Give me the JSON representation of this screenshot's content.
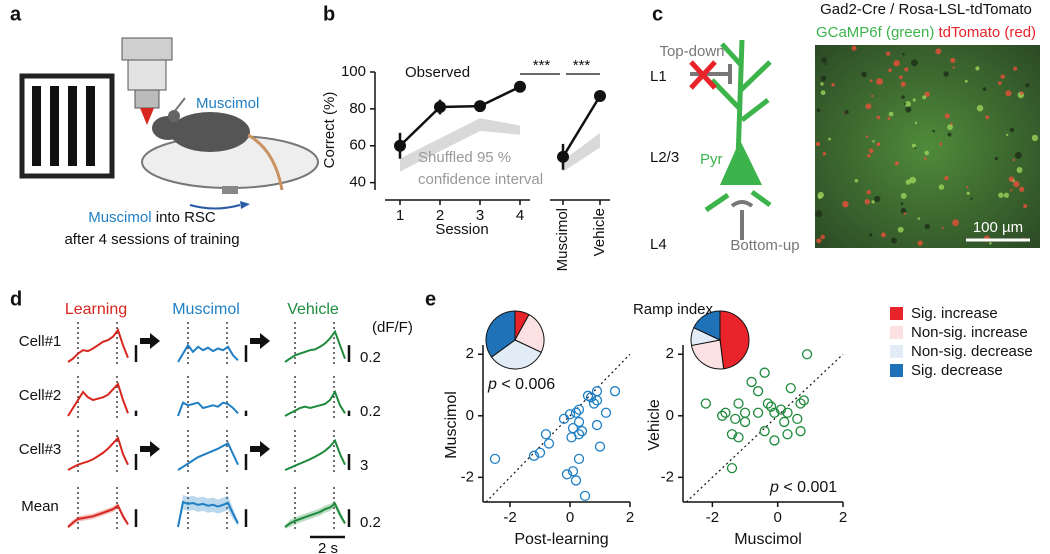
{
  "panel_a": {
    "label": "a",
    "pipette_label": "Muscimol",
    "caption_drug": "Muscimol",
    "caption_rest": " into RSC",
    "caption_line2": "after 4 sessions of training"
  },
  "panel_b": {
    "label": "b",
    "chart_data": {
      "type": "line",
      "y_label": "Correct (%)",
      "x_label": "Session",
      "categories": [
        "1",
        "2",
        "3",
        "4",
        "Muscimol",
        "Vehicle"
      ],
      "series": [
        {
          "name": "Observed",
          "color": "#111111",
          "values": [
            60,
            81,
            81.5,
            92,
            54,
            87
          ],
          "errors": [
            7,
            4,
            3,
            1.5,
            7,
            3
          ]
        }
      ],
      "band": {
        "name_lines": [
          "Shuffled 95 %",
          "confidence interval"
        ],
        "color": "#d9d9d9",
        "lower": [
          46,
          57,
          68,
          66,
          46,
          59
        ],
        "upper": [
          53,
          64,
          75,
          71,
          52,
          67
        ]
      },
      "significance": [
        "***",
        "***"
      ],
      "ylim": [
        36,
        100
      ],
      "yticks": [
        40,
        60,
        80,
        100
      ]
    }
  },
  "panel_c": {
    "label": "c",
    "layers": [
      "L1",
      "L2/3",
      "L4"
    ],
    "top_down": "Top-down",
    "cell": "Pyr",
    "bottom_up": "Bottom-up",
    "image_title": "Gad2-Cre / Rosa-LSL-tdTomato",
    "channels": [
      {
        "text": "GCaMP6f (green)",
        "color": "#3cb44b"
      },
      {
        "text": "tdTomato (red)",
        "color": "#e8232a"
      }
    ],
    "scale_bar": "100 µm"
  },
  "panel_d": {
    "label": "d",
    "unit_label": "(dF/F)",
    "time_scale": {
      "value": 2,
      "label": "2 s"
    },
    "columns": [
      {
        "title": "Learning",
        "color": "#d7261e"
      },
      {
        "title": "Muscimol",
        "color": "#1f7fc4"
      },
      {
        "title": "Vehicle",
        "color": "#1e8a3c"
      }
    ],
    "rows": [
      {
        "label": "Cell#1",
        "scale": 0.2,
        "traces": [
          [
            0,
            0.04,
            0.1,
            0.14,
            0.13,
            0.16,
            0.2,
            0.24,
            0.26,
            0.3,
            0.38,
            0.2,
            0.05
          ],
          [
            0,
            0.1,
            0.2,
            0.12,
            0.18,
            0.14,
            0.17,
            0.13,
            0.16,
            0.14,
            0.18,
            0.08,
            0.02
          ],
          [
            0,
            0.04,
            0.08,
            0.1,
            0.12,
            0.14,
            0.15,
            0.18,
            0.22,
            0.28,
            0.36,
            0.2,
            0.04
          ]
        ]
      },
      {
        "label": "Cell#2",
        "scale": 0.2,
        "traces": [
          [
            0,
            0.3,
            0.6,
            0.9,
            0.7,
            0.6,
            0.65,
            0.7,
            0.8,
            1.0,
            1.2,
            0.6,
            0.1
          ],
          [
            0,
            0.5,
            0.4,
            0.45,
            0.5,
            0.3,
            0.35,
            0.4,
            0.35,
            0.5,
            0.45,
            0.3,
            0.1
          ],
          [
            0,
            0.1,
            0.2,
            0.3,
            0.35,
            0.3,
            0.35,
            0.4,
            0.45,
            0.6,
            0.9,
            0.4,
            0.1
          ]
        ]
      },
      {
        "label": "Cell#3",
        "scale": 3,
        "traces": [
          [
            0,
            0.5,
            1,
            1.3,
            1.6,
            2,
            2.6,
            3.2,
            4,
            5,
            6,
            3,
            1
          ],
          [
            0,
            0.6,
            1.2,
            1.8,
            2.4,
            2.8,
            3.2,
            3.6,
            4,
            4.5,
            5,
            3,
            1
          ],
          [
            0,
            0.4,
            0.8,
            1.2,
            1.6,
            2,
            2.5,
            3,
            3.6,
            4.4,
            5.5,
            3,
            1
          ]
        ]
      },
      {
        "label": "Mean",
        "scale": 0.2,
        "traces": [
          [
            0,
            0.05,
            0.09,
            0.1,
            0.11,
            0.12,
            0.14,
            0.16,
            0.18,
            0.2,
            0.24,
            0.12,
            0.03
          ],
          [
            0,
            0.28,
            0.26,
            0.27,
            0.25,
            0.26,
            0.24,
            0.25,
            0.23,
            0.25,
            0.27,
            0.15,
            0.04
          ],
          [
            0,
            0.04,
            0.07,
            0.09,
            0.11,
            0.13,
            0.15,
            0.17,
            0.2,
            0.22,
            0.26,
            0.14,
            0.04
          ]
        ],
        "sem": [
          [
            0.02,
            0.03,
            0.03,
            0.03,
            0.03,
            0.03,
            0.03,
            0.03,
            0.03,
            0.03,
            0.03,
            0.03,
            0.02
          ],
          [
            0.03,
            0.08,
            0.08,
            0.08,
            0.08,
            0.08,
            0.08,
            0.08,
            0.08,
            0.08,
            0.08,
            0.06,
            0.03
          ],
          [
            0.02,
            0.04,
            0.04,
            0.04,
            0.04,
            0.04,
            0.04,
            0.04,
            0.04,
            0.04,
            0.04,
            0.04,
            0.02
          ]
        ]
      }
    ]
  },
  "panel_e": {
    "label": "e",
    "title": "Ramp index",
    "legend": [
      {
        "name": "Sig. increase",
        "color": "#e8232a"
      },
      {
        "name": "Non-sig. increase",
        "color": "#fbe1e1"
      },
      {
        "name": "Non-sig. decrease",
        "color": "#e1ecf7"
      },
      {
        "name": "Sig. decrease",
        "color": "#1f72b8"
      }
    ],
    "pies": [
      {
        "values": [
          8,
          24,
          33,
          35
        ]
      },
      {
        "values": [
          48,
          24,
          10,
          18
        ]
      }
    ],
    "scatters": [
      {
        "type": "scatter",
        "x_label": "Post-learning",
        "y_label": "Muscimol",
        "color": "#1f7fc4",
        "stat_symbol": "p",
        "stat_text": " < 0.006",
        "x": [
          -2.5,
          -1.2,
          -1.0,
          -0.8,
          -0.7,
          -0.2,
          0,
          0.2,
          0.3,
          0.1,
          0.3,
          0.05,
          0.4,
          0.8,
          0.9,
          0.7,
          1.5,
          0.9,
          1.2,
          1.0,
          0.3,
          0.1,
          0.2,
          -0.1,
          0.5,
          0.3,
          0.9,
          0.6
        ],
        "y": [
          -1.4,
          -1.3,
          -1.2,
          -0.6,
          -0.9,
          -0.1,
          0.05,
          0.1,
          -0.2,
          -0.4,
          -0.6,
          -0.7,
          -0.5,
          0.4,
          0.5,
          0.6,
          0.8,
          0.8,
          0.1,
          -1.0,
          -1.4,
          -1.8,
          -2.1,
          -1.9,
          -2.6,
          0.2,
          -0.3,
          0.65
        ],
        "xlim": [
          -2.9,
          2
        ],
        "ylim": [
          -2.8,
          2.3
        ],
        "xticks": [
          -2,
          0,
          2
        ],
        "yticks": [
          -2,
          0,
          2
        ]
      },
      {
        "type": "scatter",
        "x_label": "Muscimol",
        "y_label": "Vehicle",
        "color": "#1e8a3c",
        "stat_symbol": "p",
        "stat_text": " < 0.001",
        "x": [
          -2.2,
          -1.7,
          -1.6,
          -1.2,
          -1.0,
          -1.0,
          -1.3,
          -1.4,
          -1.4,
          -1.2,
          -0.8,
          -0.6,
          -0.4,
          -0.3,
          -0.4,
          -0.1,
          -0.2,
          -0.1,
          0.1,
          0.2,
          0.3,
          0.4,
          0.6,
          0.7,
          0.8,
          0.9,
          0.7,
          0.3,
          -0.6
        ],
        "y": [
          0.4,
          0,
          0.1,
          0.4,
          0.1,
          -0.2,
          -0.1,
          -0.6,
          -1.7,
          -0.7,
          1.1,
          0.8,
          1.4,
          0.4,
          -0.5,
          -0.8,
          0.3,
          0.1,
          0.2,
          -0.2,
          -0.6,
          0.9,
          -0.1,
          0.4,
          0.5,
          2.0,
          -0.5,
          0.1,
          0.1
        ],
        "xlim": [
          -2.9,
          2
        ],
        "ylim": [
          -2.8,
          2.3
        ],
        "xticks": [
          -2,
          0,
          2
        ],
        "yticks": [
          -2,
          0,
          2
        ]
      }
    ]
  }
}
